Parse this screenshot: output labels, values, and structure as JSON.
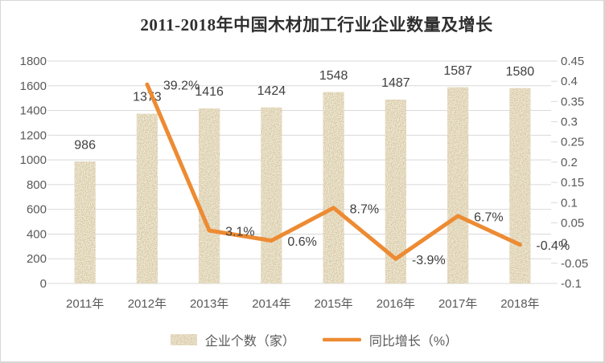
{
  "title": "2011-2018年中国木材加工行业企业数量及增长",
  "legend": {
    "bar_label": "企业个数（家）",
    "line_label": "同比增长（%）"
  },
  "colors": {
    "bar_base": "#d9c48c",
    "bar_speckle_dark": "#8a733a",
    "bar_speckle_light": "#f2ecd8",
    "line": "#ed8b33",
    "grid": "#d9d9d9",
    "axis_text": "#595959",
    "value_text": "#3f3f3f",
    "title_text": "#2f2f2f"
  },
  "chart_data": {
    "type": "bar+line",
    "title": "2011-2018年中国木材加工行业企业数量及增长",
    "categories": [
      "2011年",
      "2012年",
      "2013年",
      "2014年",
      "2015年",
      "2016年",
      "2017年",
      "2018年"
    ],
    "series": [
      {
        "name": "企业个数（家）",
        "type": "bar",
        "axis": "left",
        "values": [
          986,
          1373,
          1416,
          1424,
          1548,
          1487,
          1587,
          1580
        ],
        "labels": [
          "986",
          "1373",
          "1416",
          "1424",
          "1548",
          "1487",
          "1587",
          "1580"
        ]
      },
      {
        "name": "同比增长（%）",
        "type": "line",
        "axis": "right",
        "values_percent": [
          null,
          39.2,
          3.1,
          0.6,
          8.7,
          -3.9,
          6.7,
          -0.4
        ],
        "labels": [
          null,
          "39.2%",
          "3.1%",
          "0.6%",
          "8.7%",
          "-3.9%",
          "6.7%",
          "-0.4%"
        ]
      }
    ],
    "axes": {
      "left": {
        "min": 0,
        "max": 1800,
        "step": 200,
        "ticks": [
          "1800",
          "1600",
          "1400",
          "1200",
          "1000",
          "800",
          "600",
          "400",
          "200",
          "0"
        ]
      },
      "right": {
        "min": -0.1,
        "max": 0.45,
        "step": 0.05,
        "ticks": [
          "0.45",
          "0.4",
          "0.35",
          "0.3",
          "0.25",
          "0.2",
          "0.15",
          "0.1",
          "0.05",
          "0",
          "-0.05",
          "-0.1"
        ]
      }
    },
    "grid": true,
    "legend_position": "bottom"
  }
}
